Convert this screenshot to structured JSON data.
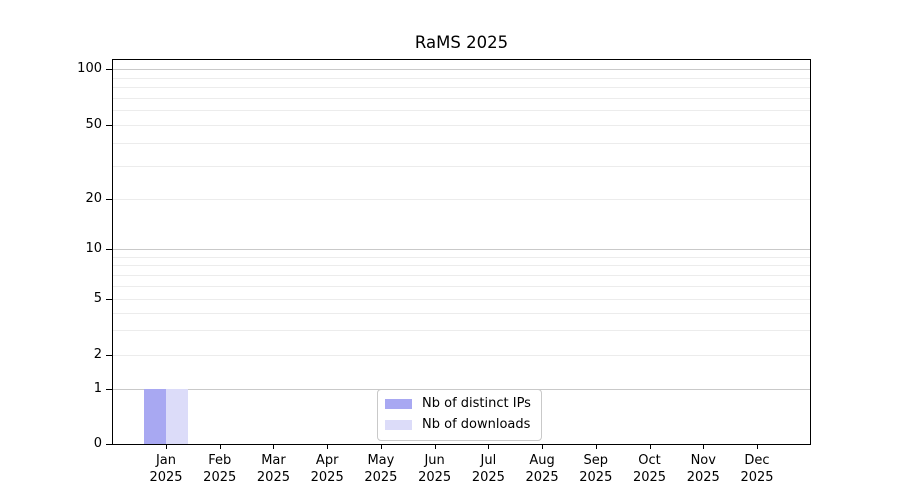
{
  "chart_data": {
    "type": "bar",
    "title": "RaMS 2025",
    "categories": [
      {
        "label": "Jan",
        "sub": "2025"
      },
      {
        "label": "Feb",
        "sub": "2025"
      },
      {
        "label": "Mar",
        "sub": "2025"
      },
      {
        "label": "Apr",
        "sub": "2025"
      },
      {
        "label": "May",
        "sub": "2025"
      },
      {
        "label": "Jun",
        "sub": "2025"
      },
      {
        "label": "Jul",
        "sub": "2025"
      },
      {
        "label": "Aug",
        "sub": "2025"
      },
      {
        "label": "Sep",
        "sub": "2025"
      },
      {
        "label": "Oct",
        "sub": "2025"
      },
      {
        "label": "Nov",
        "sub": "2025"
      },
      {
        "label": "Dec",
        "sub": "2025"
      }
    ],
    "series": [
      {
        "name": "Nb of distinct IPs",
        "color": "#a8a8f2",
        "values": [
          1,
          0,
          0,
          0,
          0,
          0,
          0,
          0,
          0,
          0,
          0,
          0
        ]
      },
      {
        "name": "Nb of downloads",
        "color": "#dcdcf9",
        "values": [
          1,
          0,
          0,
          0,
          0,
          0,
          0,
          0,
          0,
          0,
          0,
          0
        ]
      }
    ],
    "y_axis": {
      "ticks": [
        100,
        50,
        20,
        10,
        5,
        2,
        1,
        0
      ],
      "scale": "log-like with 0 baseline",
      "ylim": [
        0,
        110
      ]
    },
    "x_axis": {
      "year": "2025"
    },
    "grid": true,
    "legend_position": "bottom-center",
    "colors": {
      "major_grid": "#c9c9c9",
      "minor_grid": "#ececec",
      "spine": "#000000",
      "background": "#ffffff"
    }
  }
}
